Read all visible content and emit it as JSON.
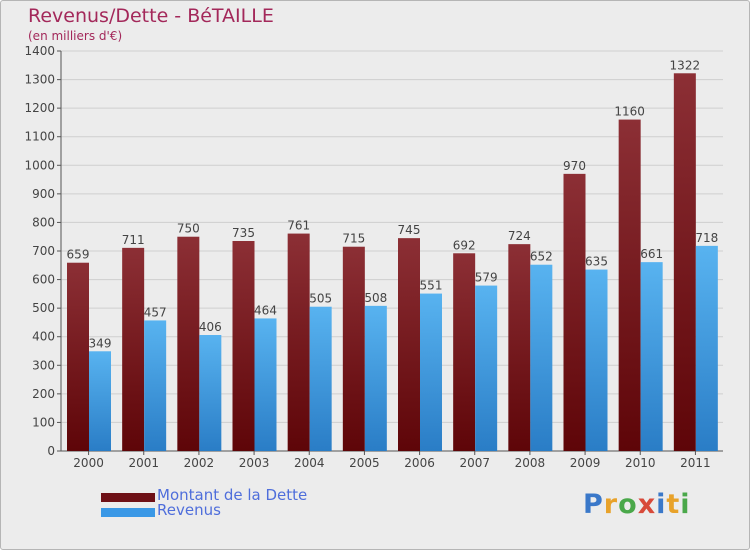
{
  "title": "Revenus/Dette - BéTAILLE",
  "subtitle": "(en milliers d'€)",
  "legend": {
    "debt_label": "Montant de la Dette",
    "revenue_label": "Revenus"
  },
  "logo": {
    "text": "Proxiti",
    "letters": [
      {
        "char": "P",
        "color": "#3a78c9"
      },
      {
        "char": "r",
        "color": "#e8a22a"
      },
      {
        "char": "o",
        "color": "#4aa84a"
      },
      {
        "char": "x",
        "color": "#d84a3a"
      },
      {
        "char": "i",
        "color": "#3a78c9"
      },
      {
        "char": "t",
        "color": "#e8a22a"
      },
      {
        "char": "i",
        "color": "#4aa84a"
      }
    ]
  },
  "colors": {
    "debt": "#7a1a20",
    "revenue": "#3a98e6",
    "title": "#a3285a",
    "legend_text": "#4f6edb"
  },
  "chart_data": {
    "type": "bar",
    "categories": [
      "2000",
      "2001",
      "2002",
      "2003",
      "2004",
      "2005",
      "2006",
      "2007",
      "2008",
      "2009",
      "2010",
      "2011"
    ],
    "series": [
      {
        "name": "Montant de la Dette",
        "values": [
          659,
          711,
          750,
          735,
          761,
          715,
          745,
          692,
          724,
          970,
          1160,
          1322
        ]
      },
      {
        "name": "Revenus",
        "values": [
          349,
          457,
          406,
          464,
          505,
          508,
          551,
          579,
          652,
          635,
          661,
          718
        ]
      }
    ],
    "ylim": [
      0,
      1400
    ],
    "ytick_step": 100,
    "grid": true,
    "legend_position": "bottom-left"
  }
}
